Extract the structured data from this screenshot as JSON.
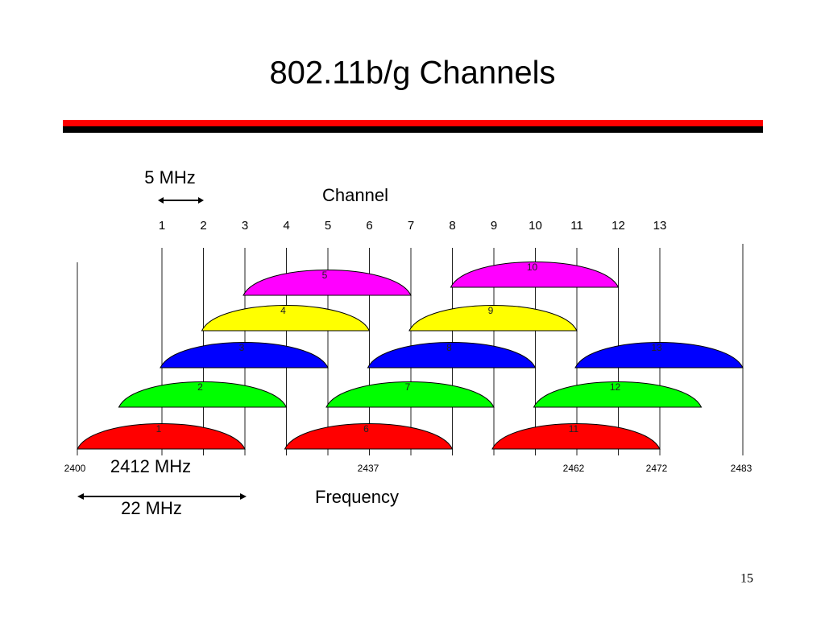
{
  "title": "802.11b/g Channels",
  "slide_number": "15",
  "diagram": {
    "spacing_label": "5 MHz",
    "channel_axis_label": "Channel",
    "channel_ticks": [
      "1",
      "2",
      "3",
      "4",
      "5",
      "6",
      "7",
      "8",
      "9",
      "10",
      "11",
      "12",
      "13"
    ],
    "channel_labels": [
      "1",
      "2",
      "3",
      "4",
      "5",
      "6",
      "7",
      "8",
      "9",
      "10",
      "11",
      "12",
      "13"
    ],
    "frequency_labels": [
      "2400",
      "2437",
      "2462",
      "2472",
      "2483"
    ],
    "center_label": "2412 MHz",
    "width_label": "22 MHz",
    "frequency_axis_label": "Frequency"
  }
}
